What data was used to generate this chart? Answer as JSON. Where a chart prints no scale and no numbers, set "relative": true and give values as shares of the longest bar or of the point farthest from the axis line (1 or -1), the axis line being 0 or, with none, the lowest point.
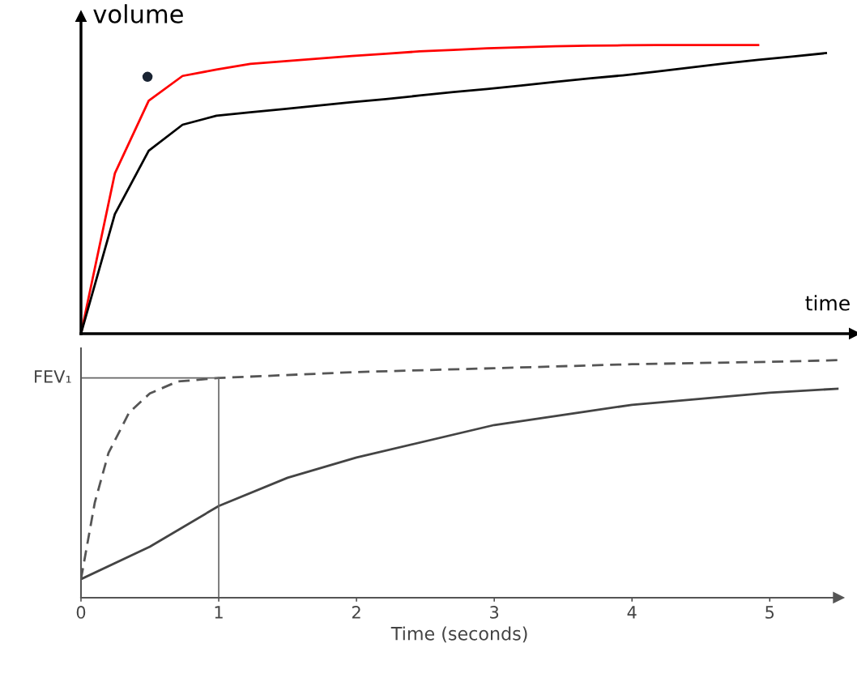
{
  "chart_data": [
    {
      "type": "line",
      "relative": true,
      "xlabel": "time",
      "ylabel": "volume",
      "grid": false,
      "legend": false,
      "categories": [
        null,
        null,
        null,
        null,
        null,
        null,
        null,
        null,
        null,
        null,
        null,
        null,
        null,
        null,
        null,
        null,
        null,
        null,
        null,
        null,
        null,
        null,
        null
      ],
      "series": [
        {
          "color": "#ff0000",
          "values": [
            0,
            0.555,
            0.807,
            0.893,
            0.915,
            0.935,
            0.944,
            0.953,
            0.962,
            0.97,
            0.978,
            0.983,
            0.989,
            0.992,
            0.996,
            0.998,
            0.999,
            1.0,
            1.0,
            1.0,
            1.0,
            null,
            null
          ]
        },
        {
          "color": "#000000",
          "values": [
            0,
            0.414,
            0.634,
            0.724,
            0.755,
            0.767,
            0.778,
            0.79,
            0.802,
            0.813,
            0.825,
            0.837,
            0.848,
            0.86,
            0.872,
            0.884,
            0.895,
            0.908,
            0.922,
            0.936,
            0.949,
            0.96,
            0.972
          ]
        }
      ]
    },
    {
      "type": "line",
      "relative": true,
      "xlabel": "Time (seconds)",
      "xlim": [
        0,
        5.5
      ],
      "xticks": [
        0,
        1,
        2,
        3,
        4,
        5
      ],
      "grid": false,
      "legend": false,
      "series": [
        {
          "color": "#555555",
          "line_style": "dashed",
          "x": [
            0,
            0.1,
            0.2,
            0.35,
            0.5,
            0.7,
            1,
            2,
            3,
            4,
            5,
            5.5
          ],
          "values": [
            0.078,
            0.4,
            0.61,
            0.78,
            0.86,
            0.91,
            0.925,
            0.95,
            0.966,
            0.983,
            0.993,
            1.0
          ]
        },
        {
          "color": "#444444",
          "line_style": "solid",
          "x": [
            0,
            0.5,
            1,
            1.5,
            2,
            3,
            4,
            5,
            5.5
          ],
          "values": [
            0.078,
            0.215,
            0.386,
            0.505,
            0.59,
            0.727,
            0.812,
            0.863,
            0.88
          ]
        }
      ],
      "ref_lines": [
        {
          "axis": "y",
          "value": 0.925,
          "label": "FEV₁",
          "color": "#666666"
        },
        {
          "axis": "x",
          "value": 1,
          "color": "#666666"
        }
      ]
    }
  ]
}
